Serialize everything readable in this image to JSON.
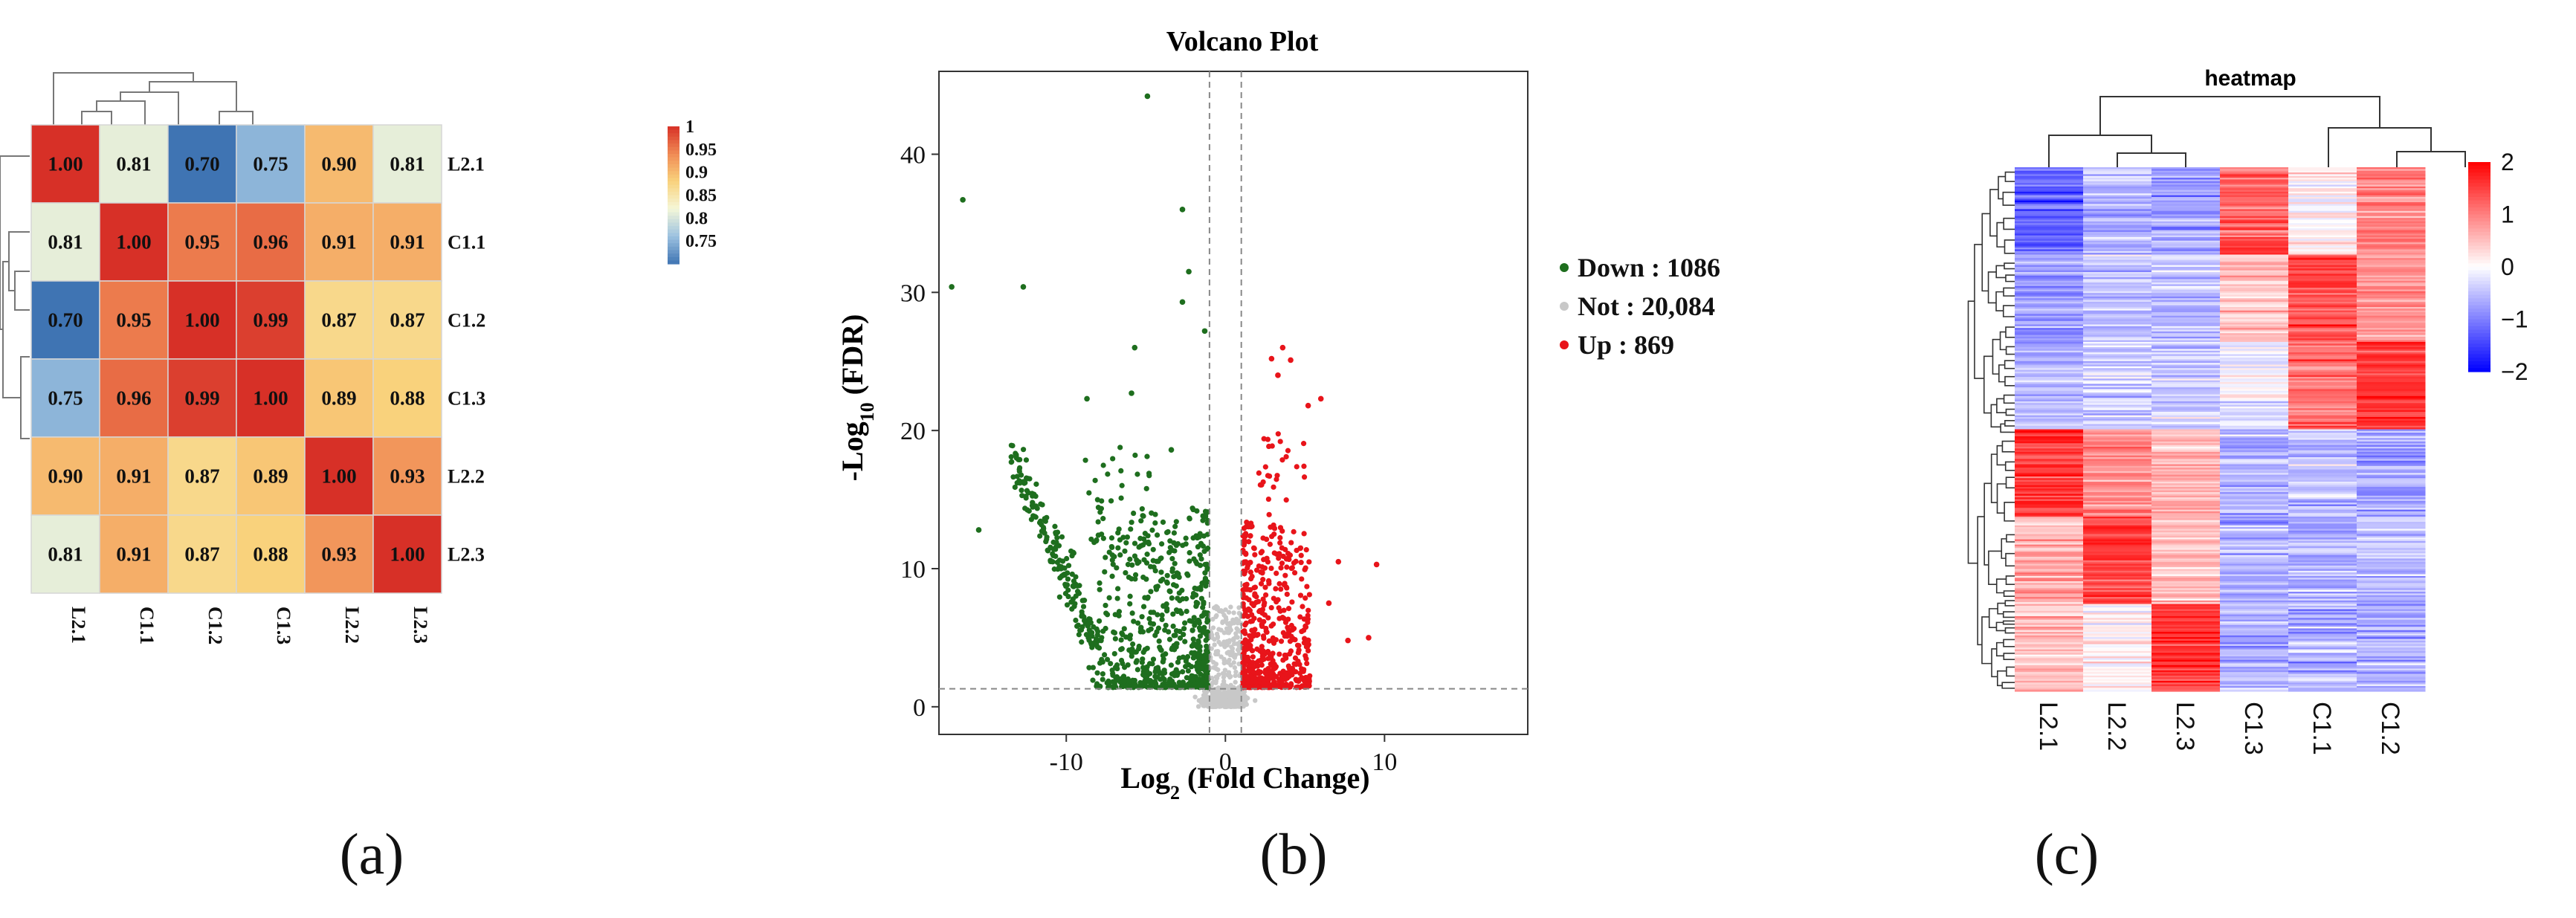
{
  "chart_data": [
    {
      "type": "heatmap",
      "panel_label": "(a)",
      "labels_x": [
        "L2.1",
        "C1.1",
        "C1.2",
        "C1.3",
        "L2.2",
        "L2.3"
      ],
      "labels_y": [
        "L2.1",
        "C1.1",
        "C1.2",
        "C1.3",
        "L2.2",
        "L2.3"
      ],
      "values": [
        [
          "1.00",
          "0.81",
          "0.70",
          "0.75",
          "0.90",
          "0.81"
        ],
        [
          "0.81",
          "1.00",
          "0.95",
          "0.96",
          "0.91",
          "0.91"
        ],
        [
          "0.70",
          "0.95",
          "1.00",
          "0.99",
          "0.87",
          "0.87"
        ],
        [
          "0.75",
          "0.96",
          "0.99",
          "1.00",
          "0.89",
          "0.88"
        ],
        [
          "0.90",
          "0.91",
          "0.87",
          "0.89",
          "1.00",
          "0.93"
        ],
        [
          "0.81",
          "0.91",
          "0.87",
          "0.88",
          "0.93",
          "1.00"
        ]
      ],
      "colorbar": {
        "min": 0.7,
        "max": 1.0,
        "ticks": [
          "1",
          "0.95",
          "0.9",
          "0.85",
          "0.8",
          "0.75"
        ],
        "colors": [
          "#3f74b3",
          "#9cc2e0",
          "#f5f7d8",
          "#f9d27c",
          "#f08a54",
          "#d73027"
        ]
      }
    },
    {
      "type": "scatter",
      "panel_label": "(b)",
      "title": "Volcano Plot",
      "xlabel_prefix": "Log",
      "xlabel_sub": "2",
      "xlabel_suffix": " (Fold Change)",
      "ylabel_prefix": "-Log",
      "ylabel_sub": "10",
      "ylabel_suffix": " (FDR)",
      "xlim": [
        -18,
        19
      ],
      "ylim": [
        -2,
        46
      ],
      "xticks": [
        "-10",
        "0",
        "10"
      ],
      "yticks": [
        "0",
        "10",
        "20",
        "30",
        "40"
      ],
      "fc_threshold": 1,
      "fdr_threshold": 1.3,
      "legend": [
        {
          "label": "Down : 1086",
          "color": "#1e6e1e"
        },
        {
          "label": "Not : 20,084",
          "color": "#c8c8c8"
        },
        {
          "label": "Up : 869",
          "color": "#e8141a"
        }
      ],
      "series": [
        {
          "name": "Down",
          "color": "#1e6e1e",
          "highlights": [
            [
              -4.9,
              44.2
            ],
            [
              -16.5,
              36.7
            ],
            [
              -17.2,
              30.4
            ],
            [
              -12.7,
              30.4
            ],
            [
              -2.7,
              36
            ],
            [
              -2.3,
              31.5
            ],
            [
              -2.7,
              29.3
            ],
            [
              -5.7,
              26
            ],
            [
              -8.7,
              22.3
            ],
            [
              -5.9,
              22.7
            ],
            [
              -15.5,
              12.8
            ],
            [
              -1.3,
              27.2
            ],
            [
              -3.4,
              18.6
            ]
          ]
        },
        {
          "name": "Up",
          "color": "#e8141a",
          "highlights": [
            [
              3.6,
              26
            ],
            [
              3.3,
              24
            ],
            [
              4.1,
              25.1
            ],
            [
              2.9,
              25.2
            ],
            [
              6,
              22.3
            ],
            [
              5.2,
              21.8
            ],
            [
              7.1,
              10.5
            ],
            [
              9.5,
              10.3
            ],
            [
              7.7,
              4.8
            ],
            [
              9,
              5
            ],
            [
              6.5,
              7.5
            ]
          ]
        },
        {
          "name": "Not",
          "color": "#c8c8c8"
        }
      ]
    },
    {
      "type": "heatmap",
      "panel_label": "(c)",
      "title": "heatmap",
      "labels_x": [
        "L2.1",
        "L2.2",
        "L2.3",
        "C1.3",
        "C1.1",
        "C1.2"
      ],
      "colorbar": {
        "min": -2,
        "max": 2,
        "ticks": [
          "2",
          "1",
          "0",
          "−1",
          "−2"
        ],
        "colors": [
          "#0000ff",
          "#ffffff",
          "#ff0000"
        ]
      },
      "block_means": [
        [
          -1.2,
          -0.6,
          -0.7,
          1.3,
          0.1,
          1.0
        ],
        [
          -0.7,
          -0.5,
          -0.5,
          0.5,
          1.4,
          0.8
        ],
        [
          -0.5,
          -0.4,
          -0.4,
          -0.1,
          1.1,
          1.6
        ],
        [
          1.6,
          0.9,
          0.6,
          -0.6,
          -0.5,
          -0.7
        ],
        [
          0.6,
          1.5,
          0.5,
          -0.6,
          -0.6,
          -0.5
        ],
        [
          0.5,
          0.1,
          1.6,
          -0.6,
          -0.6,
          -0.6
        ]
      ]
    }
  ]
}
